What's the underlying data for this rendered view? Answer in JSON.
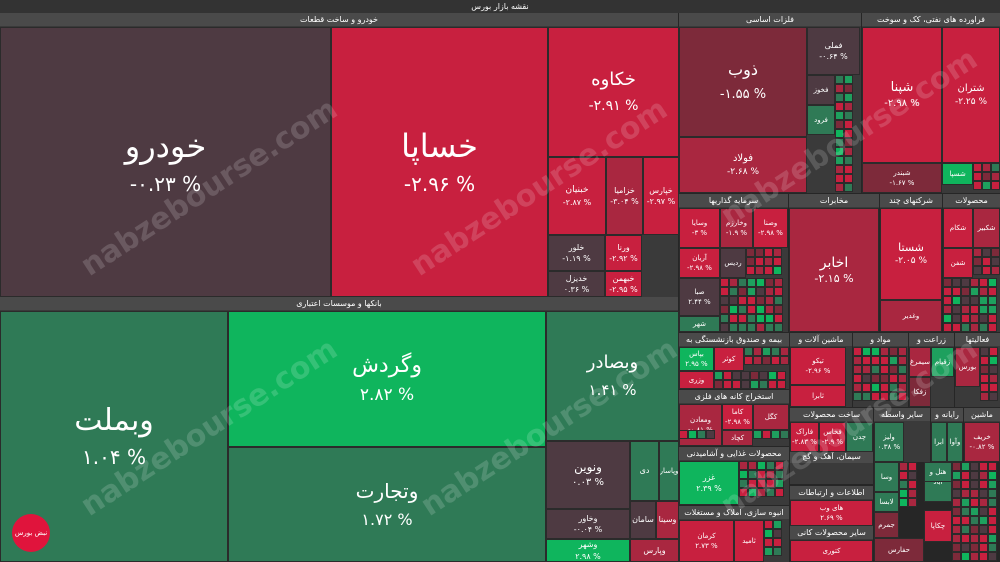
{
  "title": "نقشه بازار بورس",
  "watermark": "nabzebourse.com",
  "logo_text": "نبض بورس",
  "colors": {
    "r3": "#c8203f",
    "r2": "#a92740",
    "r1": "#7d2a3a",
    "n": "#4e3a42",
    "g1": "#2f7a56",
    "g2": "#1ea05e",
    "g3": "#0fb55d",
    "bg": "#262626"
  },
  "sectors": [
    {
      "label": "خودرو و ساخت قطعات"
    },
    {
      "label": "بانکها و موسسات اعتباری"
    },
    {
      "label": "فلزات اساسی"
    },
    {
      "label": "فراورده های نفتی، کک و سوخت"
    },
    {
      "label": "سرمایه گذاریها"
    },
    {
      "label": "مخابرات"
    },
    {
      "label": "شرکتهای چند"
    },
    {
      "label": "محصولات"
    },
    {
      "label": "بیمه و صندوق بازنشستگی به"
    },
    {
      "label": "ماشین آلات و"
    },
    {
      "label": "مواد و"
    },
    {
      "label": "زراعت و"
    },
    {
      "label": "فعالیتها"
    },
    {
      "label": "استخراج کانه های فلزی"
    },
    {
      "label": "ساخت محصولات"
    },
    {
      "label": "سایر واسطه"
    },
    {
      "label": "رایانه و"
    },
    {
      "label": "ماشین"
    },
    {
      "label": "محصولات غذایی و آشامیدنی"
    },
    {
      "label": "سیمان، آهک و گچ"
    },
    {
      "label": "اطلاعات و ارتباطات"
    },
    {
      "label": "انبوه سازی، املاک و مستغلات"
    },
    {
      "label": "سایر محصولات کانی"
    }
  ],
  "tiles": [
    {
      "name": "خودرو",
      "pct": "% ۰.۲۳-"
    },
    {
      "name": "خساپا",
      "pct": "% ۲.۹۶-"
    },
    {
      "name": "خکاوه",
      "pct": "% ۲.۹۱-"
    },
    {
      "name": "خبنیان",
      "pct": "% ۲.۸۷-"
    },
    {
      "name": "خزامیا",
      "pct": "% ۳.۰۴-"
    },
    {
      "name": "خپارس",
      "pct": "% ۲.۹۷-"
    },
    {
      "name": "خلور",
      "pct": "% ۱.۱۹-"
    },
    {
      "name": "ورنا",
      "pct": "% ۲.۹۲-"
    },
    {
      "name": "خدیزل",
      "pct": "% ۰.۳۶"
    },
    {
      "name": "خبهمن",
      "pct": "% ۲.۹۵-"
    },
    {
      "name": "وبملت",
      "pct": "% ۱.۰۴"
    },
    {
      "name": "وگردش",
      "pct": "% ۲.۸۲"
    },
    {
      "name": "وبصادر",
      "pct": "% ۱.۴۱"
    },
    {
      "name": "وتجارت",
      "pct": "% ۱.۷۲"
    },
    {
      "name": "ونوین",
      "pct": "% ۰.۰۳"
    },
    {
      "name": "وخاور",
      "pct": "% ۰.۰۴-"
    },
    {
      "name": "وشهر",
      "pct": "% ۲.۹۸"
    },
    {
      "name": "دی",
      "pct": ""
    },
    {
      "name": "وپاسار",
      "pct": ""
    },
    {
      "name": "سامان",
      "pct": ""
    },
    {
      "name": "وسینا",
      "pct": ""
    },
    {
      "name": "وپارس",
      "pct": ""
    },
    {
      "name": "ذوب",
      "pct": "% ۱.۵۵-"
    },
    {
      "name": "فولاد",
      "pct": "% ۲.۶۸-"
    },
    {
      "name": "فملی",
      "pct": "% ۰.۶۴-"
    },
    {
      "name": "فخوز",
      "pct": ""
    },
    {
      "name": "فرود",
      "pct": ""
    },
    {
      "name": "شپنا",
      "pct": "% ۲.۹۸-"
    },
    {
      "name": "شتران",
      "pct": "% ۲.۲۵-"
    },
    {
      "name": "شبندر",
      "pct": "% ۱.۶۷-"
    },
    {
      "name": "شسپا",
      "pct": ""
    },
    {
      "name": "وصنا",
      "pct": "% ۲.۹۸-"
    },
    {
      "name": "وخارزم",
      "pct": "% ۱.۹-"
    },
    {
      "name": "وسایا",
      "pct": "% ۳-"
    },
    {
      "name": "آریان",
      "pct": "% ۲.۹۸-"
    },
    {
      "name": "ردیس",
      "pct": ""
    },
    {
      "name": "صبا",
      "pct": "% ۲.۴۴"
    },
    {
      "name": "شهر",
      "pct": ""
    },
    {
      "name": "اخابر",
      "pct": "% ۲.۱۵-"
    },
    {
      "name": "شستا",
      "pct": "% ۲.۰۵-"
    },
    {
      "name": "وغدیر",
      "pct": ""
    },
    {
      "name": "شکام",
      "pct": ""
    },
    {
      "name": "شکبیر",
      "pct": ""
    },
    {
      "name": "شفن",
      "pct": ""
    },
    {
      "name": "بپاس",
      "pct": "% ۲.۹۵"
    },
    {
      "name": "کوثر",
      "pct": ""
    },
    {
      "name": "وزری",
      "pct": ""
    },
    {
      "name": "تیکو",
      "pct": "% ۲.۹۶-"
    },
    {
      "name": "ثابرا",
      "pct": ""
    },
    {
      "name": "زقیام",
      "pct": ""
    },
    {
      "name": "سیمرغ",
      "pct": ""
    },
    {
      "name": "زفکا",
      "pct": ""
    },
    {
      "name": "بورس",
      "pct": ""
    },
    {
      "name": "کگل",
      "pct": ""
    },
    {
      "name": "کاما",
      "pct": "% ۲.۹۸-"
    },
    {
      "name": "ومعادن",
      "pct": "% ۰.۸۱-"
    },
    {
      "name": "کچاد",
      "pct": ""
    },
    {
      "name": "فاراک",
      "pct": "% ۲.۸۳-"
    },
    {
      "name": "فخاس",
      "pct": "% ۲.۹-"
    },
    {
      "name": "چدن",
      "pct": ""
    },
    {
      "name": "ولیز",
      "pct": "% ۰.۳۸"
    },
    {
      "name": "ابرا",
      "pct": ""
    },
    {
      "name": "وآوا",
      "pct": ""
    },
    {
      "name": "خریف",
      "pct": "% ۰.۸۲-"
    },
    {
      "name": "غزر",
      "pct": "% ۲.۳۹"
    },
    {
      "name": "های وب",
      "pct": "% ۲.۶۹"
    },
    {
      "name": "کرمان",
      "pct": "% ۲.۷۳"
    },
    {
      "name": "ثامید",
      "pct": ""
    },
    {
      "name": "کتوری",
      "pct": ""
    },
    {
      "name": "وسا",
      "pct": ""
    },
    {
      "name": "لابسا",
      "pct": ""
    },
    {
      "name": "جمرم",
      "pct": ""
    },
    {
      "name": "حفارس",
      "pct": ""
    },
    {
      "name": "آباد",
      "pct": ""
    },
    {
      "name": "چکاپا",
      "pct": ""
    },
    {
      "name": "هتل و",
      "pct": ""
    }
  ]
}
